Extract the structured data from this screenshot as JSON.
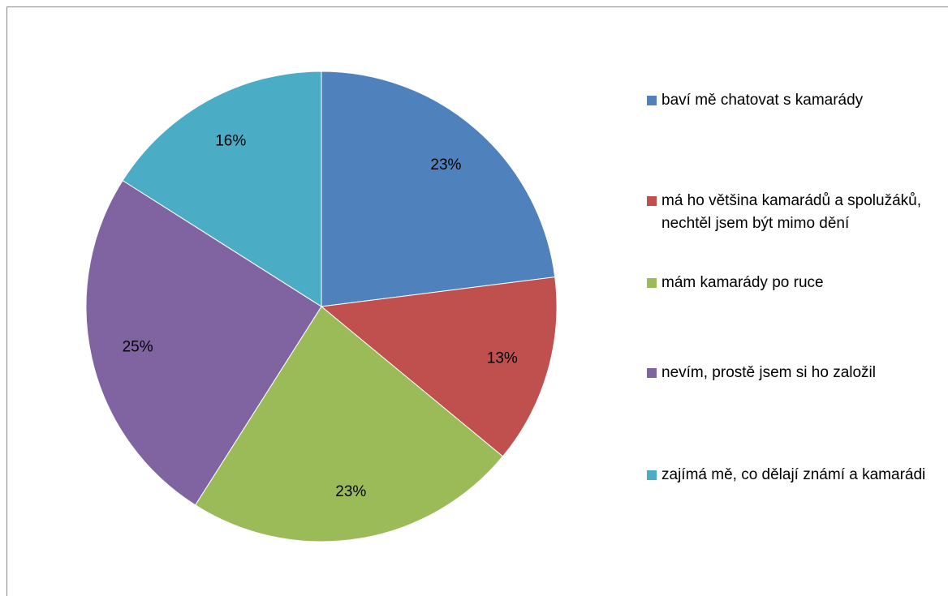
{
  "chart_data": {
    "type": "pie",
    "categories": [
      "baví mě chatovat s kamarády",
      "má ho většina kamarádů a spolužáků, nechtěl jsem být mimo dění",
      "mám kamarády po ruce",
      "nevím, prostě jsem si ho založil",
      "zajímá mě, co dělají známí a kamarádi"
    ],
    "values": [
      23,
      13,
      23,
      25,
      16
    ],
    "value_labels": [
      "23%",
      "13%",
      "23%",
      "25%",
      "16%"
    ],
    "colors": [
      "#4f81bd",
      "#c0504d",
      "#9bbb59",
      "#8064a2",
      "#4bacc6"
    ],
    "legend": "right"
  }
}
